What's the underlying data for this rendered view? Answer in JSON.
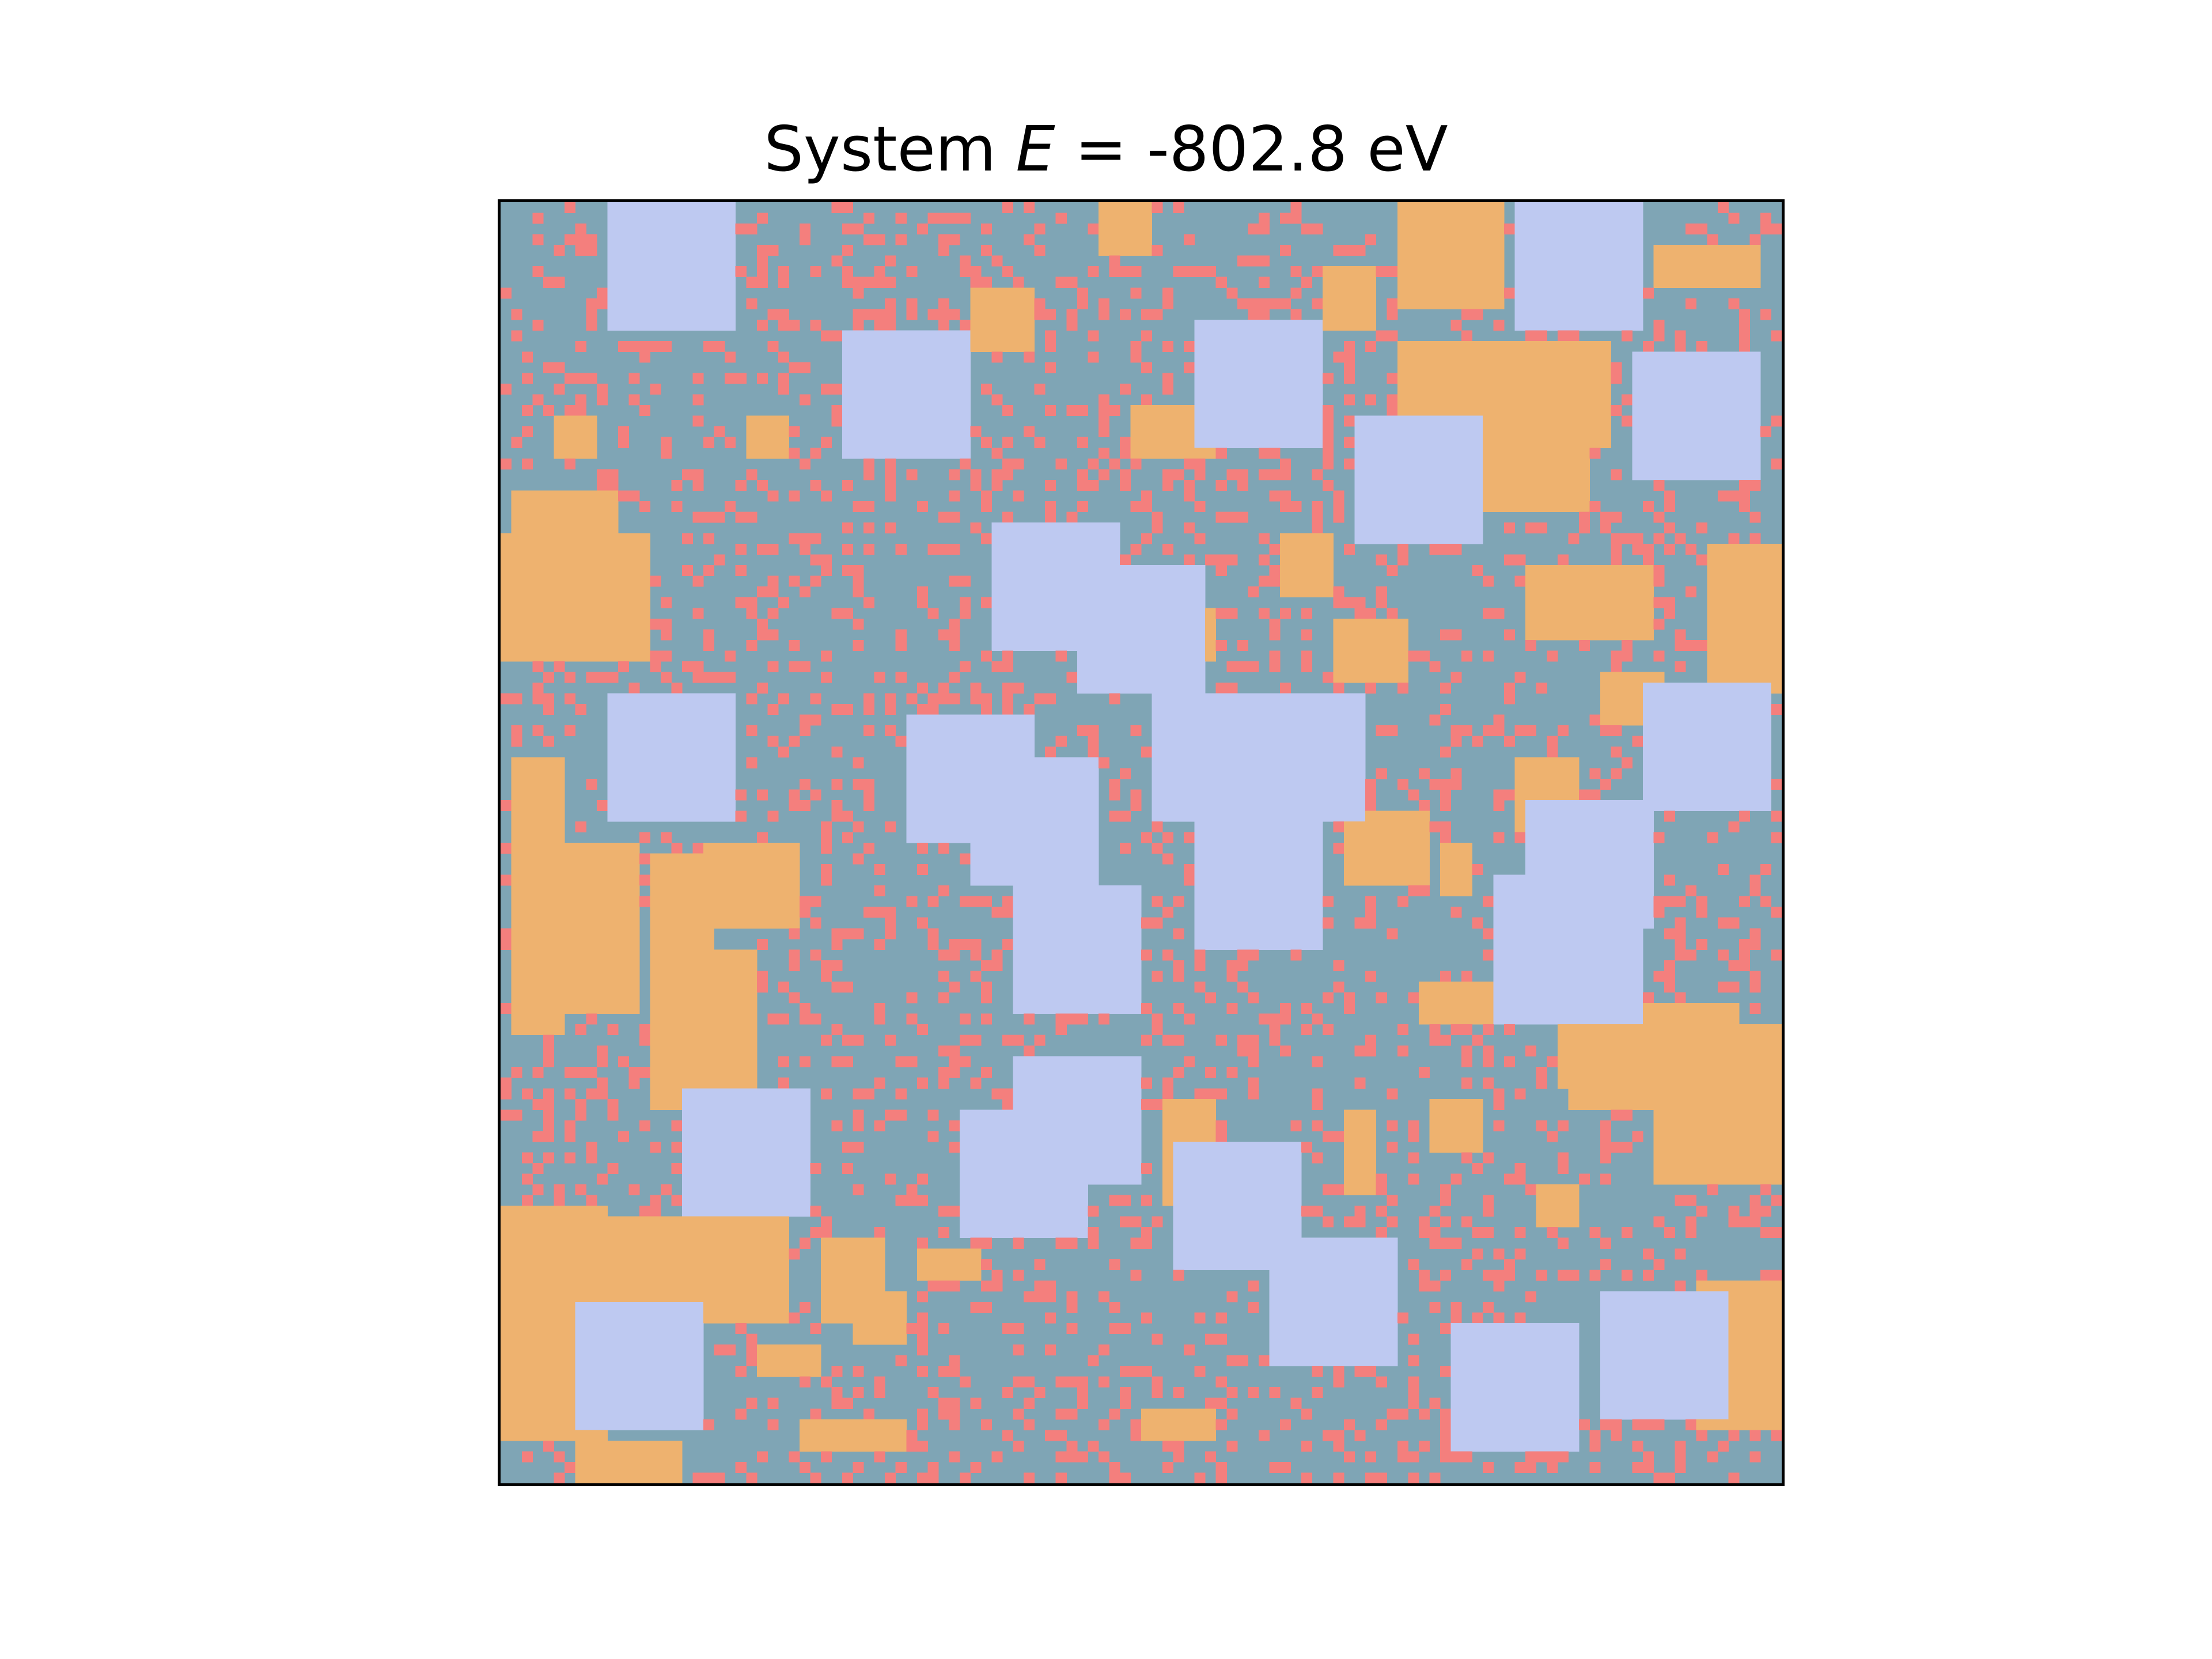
{
  "chart_data": {
    "type": "heatmap",
    "title_prefix": "System ",
    "title_symbol": "E",
    "title_suffix": " = -802.8 eV",
    "grid": false,
    "axes_ticks": false,
    "lattice": {
      "rows": 120,
      "cols": 120
    },
    "colors": {
      "background_phase": "#7fa5b5",
      "dispersed_phase": "#f47f7d",
      "orange_domain": "#eeb26f",
      "lavender_domain": "#bec9f1"
    },
    "lavender_blocks": [
      [
        10,
        0,
        12,
        12
      ],
      [
        32,
        12,
        12,
        12
      ],
      [
        65,
        11,
        12,
        12
      ],
      [
        80,
        20,
        12,
        12
      ],
      [
        95,
        0,
        12,
        12
      ],
      [
        106,
        14,
        12,
        12
      ],
      [
        46,
        30,
        12,
        12
      ],
      [
        54,
        34,
        12,
        12
      ],
      [
        10,
        46,
        12,
        12
      ],
      [
        38,
        48,
        12,
        12
      ],
      [
        44,
        52,
        12,
        12
      ],
      [
        61,
        46,
        12,
        12
      ],
      [
        69,
        46,
        12,
        12
      ],
      [
        65,
        58,
        12,
        12
      ],
      [
        48,
        64,
        12,
        12
      ],
      [
        107,
        45,
        12,
        12
      ],
      [
        96,
        56,
        12,
        12
      ],
      [
        93,
        63,
        14,
        14
      ],
      [
        17,
        83,
        12,
        12
      ],
      [
        43,
        85,
        12,
        12
      ],
      [
        48,
        80,
        12,
        12
      ],
      [
        63,
        88,
        12,
        12
      ],
      [
        72,
        97,
        12,
        12
      ],
      [
        7,
        103,
        12,
        12
      ],
      [
        89,
        105,
        12,
        12
      ],
      [
        103,
        102,
        12,
        12
      ]
    ],
    "orange_blocks": [
      [
        56,
        0,
        5,
        5
      ],
      [
        84,
        0,
        10,
        10
      ],
      [
        108,
        4,
        10,
        4
      ],
      [
        44,
        8,
        6,
        6
      ],
      [
        5,
        20,
        4,
        4
      ],
      [
        23,
        20,
        4,
        4
      ],
      [
        1,
        27,
        10,
        12
      ],
      [
        0,
        31,
        14,
        12
      ],
      [
        77,
        6,
        5,
        6
      ],
      [
        59,
        19,
        8,
        5
      ],
      [
        84,
        13,
        20,
        10
      ],
      [
        92,
        14,
        10,
        15
      ],
      [
        113,
        32,
        7,
        14
      ],
      [
        96,
        34,
        12,
        7
      ],
      [
        103,
        44,
        6,
        5
      ],
      [
        57,
        38,
        10,
        5
      ],
      [
        73,
        31,
        5,
        6
      ],
      [
        78,
        39,
        7,
        6
      ],
      [
        95,
        52,
        6,
        7
      ],
      [
        1,
        52,
        5,
        26
      ],
      [
        4,
        60,
        9,
        16
      ],
      [
        14,
        61,
        6,
        19
      ],
      [
        19,
        60,
        9,
        8
      ],
      [
        14,
        70,
        10,
        15
      ],
      [
        0,
        94,
        10,
        22
      ],
      [
        3,
        95,
        12,
        8
      ],
      [
        15,
        95,
        12,
        10
      ],
      [
        30,
        97,
        6,
        8
      ],
      [
        40,
        98,
        5,
        3
      ],
      [
        62,
        84,
        5,
        10
      ],
      [
        79,
        85,
        3,
        8
      ],
      [
        87,
        84,
        5,
        5
      ],
      [
        99,
        65,
        4,
        18
      ],
      [
        100,
        75,
        16,
        10
      ],
      [
        108,
        77,
        12,
        15
      ],
      [
        108,
        87,
        10,
        5
      ],
      [
        97,
        92,
        4,
        4
      ],
      [
        112,
        101,
        8,
        14
      ],
      [
        24,
        107,
        6,
        3
      ],
      [
        28,
        114,
        10,
        3
      ],
      [
        7,
        116,
        10,
        4
      ],
      [
        60,
        113,
        7,
        3
      ],
      [
        33,
        102,
        5,
        5
      ],
      [
        39,
        98,
        5,
        3
      ],
      [
        79,
        57,
        8,
        7
      ],
      [
        88,
        60,
        3,
        5
      ],
      [
        86,
        73,
        8,
        4
      ]
    ]
  }
}
